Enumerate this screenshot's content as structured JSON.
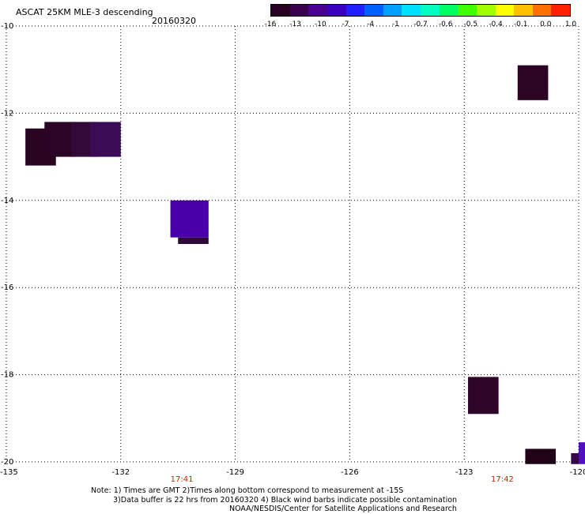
{
  "title": "ASCAT 25KM MLE-3 descending",
  "date": "20160320",
  "colorbar": {
    "segments": [
      "#2a0022",
      "#3a0050",
      "#4a0090",
      "#3a00c0",
      "#2020ff",
      "#0060ff",
      "#00a0ff",
      "#00e0ff",
      "#00ffc0",
      "#00ff60",
      "#40ff00",
      "#a0ff00",
      "#ffff00",
      "#ffc000",
      "#ff7000",
      "#ff2000"
    ],
    "labels": [
      "-16",
      "-13",
      "-10",
      "-7",
      "-4",
      "-1",
      "-0.7",
      "-0.6",
      "-0.5",
      "-0.4",
      "-0.1",
      "0.0",
      "1.0"
    ]
  },
  "y_axis": {
    "ticks": [
      "-10",
      "-12",
      "-14",
      "-16",
      "-18",
      "-20"
    ],
    "range": [
      -10,
      -20
    ]
  },
  "x_axis": {
    "ticks": [
      "-135",
      "-132",
      "-129",
      "-126",
      "-123",
      "-120"
    ],
    "range": [
      -135,
      -120
    ]
  },
  "time_labels": [
    {
      "text": "17:41",
      "lon": -130.4
    },
    {
      "text": "17:42",
      "lon": -122.0
    }
  ],
  "chart_data": {
    "type": "heatmap",
    "title": "ASCAT 25KM MLE-3 descending",
    "x_unit": "longitude",
    "y_unit": "latitude",
    "xlim": [
      -135,
      -120
    ],
    "ylim": [
      -20,
      -10
    ],
    "grid": true,
    "cells": [
      {
        "lon0": -121.6,
        "lon1": -120.8,
        "lat0": -10.9,
        "lat1": -11.7,
        "color": "#2d0524"
      },
      {
        "lon0": -134.5,
        "lon1": -133.7,
        "lat0": -12.35,
        "lat1": -13.2,
        "color": "#2a0520"
      },
      {
        "lon0": -134.0,
        "lon1": -133.2,
        "lat0": -12.2,
        "lat1": -13.0,
        "color": "#2b0525"
      },
      {
        "lon0": -133.3,
        "lon1": -132.6,
        "lat0": -12.2,
        "lat1": -13.0,
        "color": "#33093a"
      },
      {
        "lon0": -132.8,
        "lon1": -132.0,
        "lat0": -12.2,
        "lat1": -13.0,
        "color": "#3b0b55"
      },
      {
        "lon0": -130.5,
        "lon1": -129.7,
        "lat0": -14.85,
        "lat1": -15.0,
        "color": "#2e0a3a"
      },
      {
        "lon0": -130.7,
        "lon1": -129.7,
        "lat0": -14.0,
        "lat1": -14.85,
        "color": "#4a00a8"
      },
      {
        "lon0": -122.9,
        "lon1": -122.1,
        "lat0": -18.05,
        "lat1": -18.9,
        "color": "#2f0528"
      },
      {
        "lon0": -121.4,
        "lon1": -120.6,
        "lat0": -19.7,
        "lat1": -20.05,
        "color": "#220418"
      },
      {
        "lon0": -120.2,
        "lon1": -120.0,
        "lat0": -19.8,
        "lat1": -20.05,
        "color": "#3a0050"
      },
      {
        "lon0": -120.0,
        "lon1": -119.8,
        "lat0": -19.55,
        "lat1": -20.05,
        "color": "#5010c0"
      }
    ]
  },
  "note": {
    "line1": "Note: 1) Times are GMT 2)Times along bottom correspond to measurement at -15S",
    "line2": "3)Data buffer is 22 hrs from 20160320 4) Black wind barbs indicate possible contamination",
    "line3": "NOAA/NESDIS/Center for Satellite Applications and Research"
  }
}
